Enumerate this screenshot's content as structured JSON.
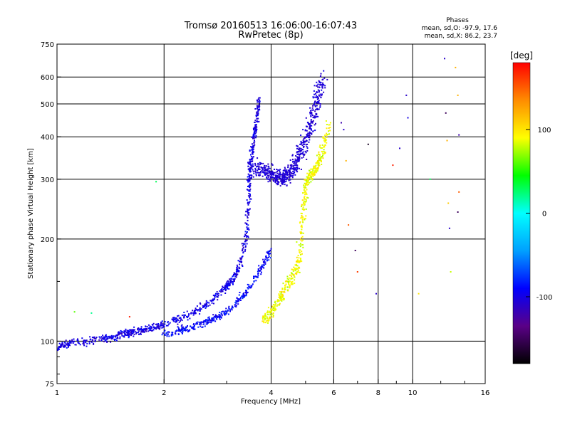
{
  "chart_data": {
    "type": "scatter",
    "title": "Tromsø 20160513 16:06:00-16:07:43",
    "subtitle": "RwPretec (8p)",
    "xlabel": "Frequency [MHz]",
    "ylabel": "Stationary phase Virtual Height [km]",
    "x_scale": "log",
    "y_scale": "log",
    "xlim": [
      1,
      16
    ],
    "ylim": [
      75,
      750
    ],
    "x_tick_labels": [
      "1",
      "2",
      "4",
      "6",
      "8",
      "10",
      "16"
    ],
    "y_tick_labels": [
      "75",
      "100",
      "200",
      "300",
      "400",
      "500",
      "600",
      "750"
    ],
    "grid": true,
    "stats": {
      "heading": "Phases",
      "line_o": "mean, sd,O: -97.9, 17.6",
      "line_x": "mean, sd,X:  86.2, 23.7"
    },
    "colorbar": {
      "label": "[deg]",
      "range": [
        -180,
        180
      ],
      "tick_labels": [
        "100",
        "0",
        "-100"
      ],
      "colors": [
        "#000000",
        "#5a0087",
        "#0000ff",
        "#00a0ff",
        "#00ffff",
        "#00ff00",
        "#ffff00",
        "#ff8c00",
        "#ff0000"
      ]
    },
    "o_trace": [
      {
        "f": 1.0,
        "h": 96
      },
      {
        "f": 1.05,
        "h": 98
      },
      {
        "f": 1.1,
        "h": 99
      },
      {
        "f": 1.2,
        "h": 100
      },
      {
        "f": 1.3,
        "h": 101
      },
      {
        "f": 1.4,
        "h": 102
      },
      {
        "f": 1.5,
        "h": 104
      },
      {
        "f": 1.6,
        "h": 106
      },
      {
        "f": 1.7,
        "h": 107
      },
      {
        "f": 1.8,
        "h": 109
      },
      {
        "f": 1.9,
        "h": 110
      },
      {
        "f": 2.0,
        "h": 112
      },
      {
        "f": 2.2,
        "h": 116
      },
      {
        "f": 2.4,
        "h": 121
      },
      {
        "f": 2.6,
        "h": 127
      },
      {
        "f": 2.8,
        "h": 135
      },
      {
        "f": 3.0,
        "h": 145
      },
      {
        "f": 3.1,
        "h": 150
      },
      {
        "f": 3.2,
        "h": 160
      },
      {
        "f": 3.3,
        "h": 175
      },
      {
        "f": 3.4,
        "h": 200
      },
      {
        "f": 3.45,
        "h": 240
      },
      {
        "f": 3.48,
        "h": 290
      },
      {
        "f": 3.5,
        "h": 330
      },
      {
        "f": 3.55,
        "h": 370
      },
      {
        "f": 3.6,
        "h": 410
      },
      {
        "f": 3.65,
        "h": 460
      },
      {
        "f": 3.7,
        "h": 520
      }
    ],
    "o_lower_branch": [
      {
        "f": 2.0,
        "h": 105
      },
      {
        "f": 2.2,
        "h": 107
      },
      {
        "f": 2.4,
        "h": 110
      },
      {
        "f": 2.6,
        "h": 113
      },
      {
        "f": 2.8,
        "h": 117
      },
      {
        "f": 3.0,
        "h": 122
      },
      {
        "f": 3.2,
        "h": 130
      },
      {
        "f": 3.4,
        "h": 140
      },
      {
        "f": 3.6,
        "h": 152
      },
      {
        "f": 3.8,
        "h": 168
      },
      {
        "f": 4.0,
        "h": 185
      }
    ],
    "o_f_layer": [
      {
        "f": 3.5,
        "h": 330
      },
      {
        "f": 3.8,
        "h": 320
      },
      {
        "f": 4.0,
        "h": 310
      },
      {
        "f": 4.2,
        "h": 300
      },
      {
        "f": 4.4,
        "h": 305
      },
      {
        "f": 4.6,
        "h": 320
      },
      {
        "f": 4.8,
        "h": 350
      },
      {
        "f": 5.0,
        "h": 390
      },
      {
        "f": 5.2,
        "h": 440
      },
      {
        "f": 5.4,
        "h": 520
      },
      {
        "f": 5.6,
        "h": 600
      }
    ],
    "x_trace": [
      {
        "f": 3.8,
        "h": 115
      },
      {
        "f": 4.0,
        "h": 122
      },
      {
        "f": 4.2,
        "h": 132
      },
      {
        "f": 4.4,
        "h": 142
      },
      {
        "f": 4.6,
        "h": 155
      },
      {
        "f": 4.8,
        "h": 170
      },
      {
        "f": 4.9,
        "h": 230
      },
      {
        "f": 5.0,
        "h": 290
      },
      {
        "f": 5.2,
        "h": 310
      },
      {
        "f": 5.4,
        "h": 330
      },
      {
        "f": 5.6,
        "h": 370
      },
      {
        "f": 5.8,
        "h": 440
      }
    ],
    "sparse_points": [
      {
        "f": 1.12,
        "h": 122,
        "phase": 60
      },
      {
        "f": 1.25,
        "h": 121,
        "phase": 20
      },
      {
        "f": 1.6,
        "h": 118,
        "phase": 170
      },
      {
        "f": 1.9,
        "h": 295,
        "phase": 30
      },
      {
        "f": 6.3,
        "h": 440,
        "phase": -120
      },
      {
        "f": 6.4,
        "h": 420,
        "phase": -110
      },
      {
        "f": 6.5,
        "h": 340,
        "phase": 120
      },
      {
        "f": 6.6,
        "h": 220,
        "phase": 150
      },
      {
        "f": 6.9,
        "h": 185,
        "phase": -150
      },
      {
        "f": 7.0,
        "h": 160,
        "phase": 160
      },
      {
        "f": 7.5,
        "h": 380,
        "phase": -170
      },
      {
        "f": 7.9,
        "h": 138,
        "phase": -110
      },
      {
        "f": 8.8,
        "h": 330,
        "phase": 170
      },
      {
        "f": 9.2,
        "h": 370,
        "phase": -110
      },
      {
        "f": 9.6,
        "h": 530,
        "phase": -110
      },
      {
        "f": 9.7,
        "h": 455,
        "phase": -100
      },
      {
        "f": 10.4,
        "h": 138,
        "phase": 100
      },
      {
        "f": 11.2,
        "h": 300,
        "phase": 30
      },
      {
        "f": 12.3,
        "h": 680,
        "phase": -110
      },
      {
        "f": 12.4,
        "h": 470,
        "phase": -150
      },
      {
        "f": 12.5,
        "h": 390,
        "phase": 120
      },
      {
        "f": 12.6,
        "h": 255,
        "phase": 110
      },
      {
        "f": 12.7,
        "h": 215,
        "phase": -110
      },
      {
        "f": 12.8,
        "h": 160,
        "phase": 80
      },
      {
        "f": 13.2,
        "h": 640,
        "phase": 120
      },
      {
        "f": 13.4,
        "h": 530,
        "phase": 120
      },
      {
        "f": 13.5,
        "h": 405,
        "phase": -120
      },
      {
        "f": 13.5,
        "h": 275,
        "phase": 150
      },
      {
        "f": 13.4,
        "h": 240,
        "phase": -150
      }
    ]
  }
}
